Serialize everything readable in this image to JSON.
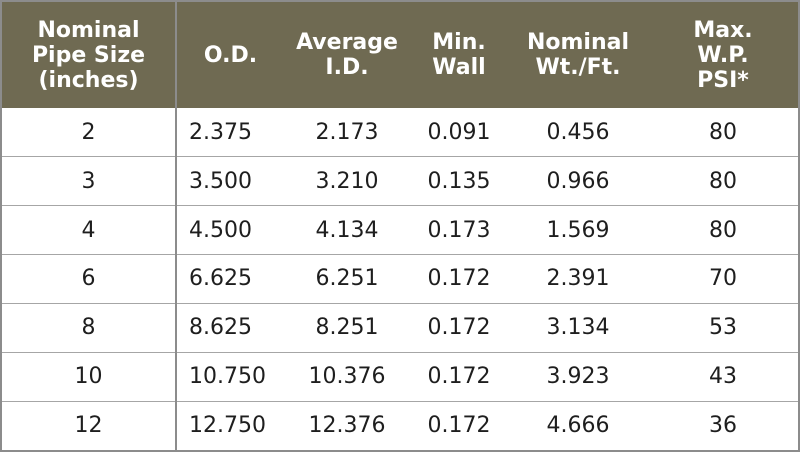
{
  "table": {
    "headers": [
      "Nominal\nPipe Size\n(inches)",
      "O.D.",
      "Average\nI.D.",
      "Min.\nWall",
      "Nominal\nWt./Ft.",
      "Max.\nW.P.\nPSI*"
    ],
    "rows": [
      [
        "2",
        "2.375",
        "2.173",
        "0.091",
        "0.456",
        "80"
      ],
      [
        "3",
        "3.500",
        "3.210",
        "0.135",
        "0.966",
        "80"
      ],
      [
        "4",
        "4.500",
        "4.134",
        "0.173",
        "1.569",
        "80"
      ],
      [
        "6",
        "6.625",
        "6.251",
        "0.172",
        "2.391",
        "70"
      ],
      [
        "8",
        "8.625",
        "8.251",
        "0.172",
        "3.134",
        "53"
      ],
      [
        "10",
        "10.750",
        "10.376",
        "0.172",
        "3.923",
        "43"
      ],
      [
        "12",
        "12.750",
        "12.376",
        "0.172",
        "4.666",
        "36"
      ]
    ]
  },
  "colors": {
    "header_bg": "#6f6a52",
    "header_text": "#ffffff",
    "body_text": "#1e1e1e",
    "grid": "#a6a6a6"
  }
}
